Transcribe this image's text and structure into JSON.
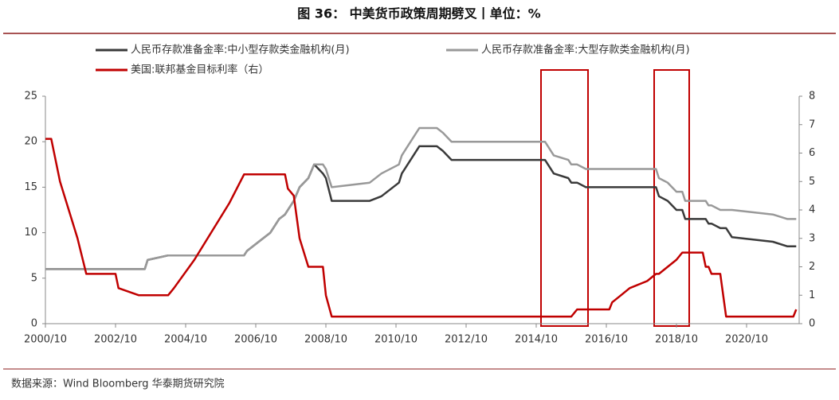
{
  "chart_data": {
    "type": "line",
    "title": "图 36：  中美货币政策周期劈叉丨单位：%",
    "source": "数据来源：Wind Bloomberg  华泰期货研究院",
    "x": [
      "2000/10",
      "2000/12",
      "2001/03",
      "2001/06",
      "2001/09",
      "2001/12",
      "2002/10",
      "2002/11",
      "2003/06",
      "2003/08",
      "2003/09",
      "2004/04",
      "2004/06",
      "2005/01",
      "2006/01",
      "2006/06",
      "2006/07",
      "2006/11",
      "2007/03",
      "2007/06",
      "2007/08",
      "2007/09",
      "2007/11",
      "2008/01",
      "2008/04",
      "2008/06",
      "2008/09",
      "2008/10",
      "2008/12",
      "2010/01",
      "2010/05",
      "2010/11",
      "2010/12",
      "2011/03",
      "2011/06",
      "2011/12",
      "2012/02",
      "2012/05",
      "2015/01",
      "2015/02",
      "2015/04",
      "2015/09",
      "2015/10",
      "2015/12",
      "2016/03",
      "2016/11",
      "2016/12",
      "2017/03",
      "2017/06",
      "2017/12",
      "2018/03",
      "2018/04",
      "2018/07",
      "2018/10",
      "2018/12",
      "2019/01",
      "2019/07",
      "2019/08",
      "2019/09",
      "2019/10",
      "2020/01",
      "2020/03",
      "2020/05",
      "2021/07",
      "2021/12",
      "2022/02",
      "2022/03"
    ],
    "series": [
      {
        "name": "人民币存款准备金率:中小型存款类金融机构(月)",
        "color": "#3a3a3a",
        "values": [
          6,
          6,
          6,
          6,
          6,
          6,
          6,
          6,
          6,
          6,
          7,
          7.5,
          7.5,
          7.5,
          7.5,
          7.5,
          8,
          9,
          10,
          11.5,
          12,
          12.5,
          13.5,
          15,
          16,
          17.5,
          16.5,
          16,
          13.5,
          13.5,
          14,
          15.5,
          16.5,
          18,
          19.5,
          19.5,
          19,
          18,
          18,
          17.5,
          16.5,
          16,
          15.5,
          15.5,
          15,
          15,
          15,
          15,
          15,
          15,
          15,
          14,
          13.5,
          12.5,
          12.5,
          11.5,
          11.5,
          11.5,
          11,
          11,
          10.5,
          10.5,
          9.5,
          9,
          8.5,
          8.5,
          8.5
        ]
      },
      {
        "name": "人民币存款准备金率:大型存款类金融机构(月)",
        "color": "#999999",
        "values": [
          6,
          6,
          6,
          6,
          6,
          6,
          6,
          6,
          6,
          6,
          7,
          7.5,
          7.5,
          7.5,
          7.5,
          7.5,
          8,
          9,
          10,
          11.5,
          12,
          12.5,
          13.5,
          15,
          16,
          17.5,
          17.5,
          17,
          15,
          15.5,
          16.5,
          17.5,
          18.5,
          20,
          21.5,
          21.5,
          21,
          20,
          20,
          19.5,
          18.5,
          18,
          17.5,
          17.5,
          17,
          17,
          17,
          17,
          17,
          17,
          17,
          16,
          15.5,
          14.5,
          14.5,
          13.5,
          13.5,
          13.5,
          13,
          13,
          12.5,
          12.5,
          12.5,
          12,
          11.5,
          11.5,
          11.5
        ]
      },
      {
        "name": "美国:联邦基金目标利率（右）",
        "color": "#c00000",
        "axis": "y2",
        "values": [
          6.5,
          6.5,
          5,
          4,
          3,
          1.75,
          1.75,
          1.25,
          1,
          1,
          1,
          1,
          1.25,
          2.25,
          4.25,
          5.25,
          5.25,
          5.25,
          5.25,
          5.25,
          5.25,
          4.75,
          4.5,
          3,
          2,
          2,
          2,
          1,
          0.25,
          0.25,
          0.25,
          0.25,
          0.25,
          0.25,
          0.25,
          0.25,
          0.25,
          0.25,
          0.25,
          0.25,
          0.25,
          0.25,
          0.25,
          0.5,
          0.5,
          0.5,
          0.75,
          1,
          1.25,
          1.5,
          1.75,
          1.75,
          2,
          2.25,
          2.5,
          2.5,
          2.5,
          2,
          2,
          1.75,
          1.75,
          0.25,
          0.25,
          0.25,
          0.25,
          0.25,
          0.5
        ]
      }
    ],
    "xlim": [
      "2000/10",
      "2022/04"
    ],
    "xticks": [
      "2000/10",
      "2002/10",
      "2004/10",
      "2006/10",
      "2008/10",
      "2010/10",
      "2012/10",
      "2014/10",
      "2016/10",
      "2018/10",
      "2020/10"
    ],
    "ylim": [
      0,
      25
    ],
    "yticks": [
      0,
      5,
      10,
      15,
      20,
      25
    ],
    "y2lim": [
      0,
      8
    ],
    "y2ticks": [
      0,
      1,
      2,
      3,
      4,
      5,
      6,
      7,
      8
    ]
  }
}
